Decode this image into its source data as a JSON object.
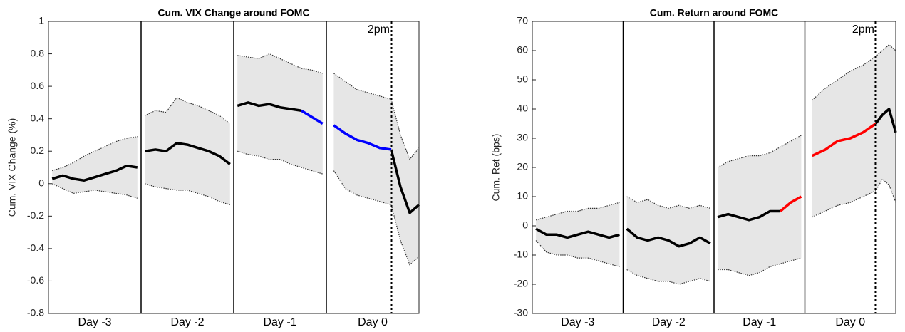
{
  "chart_data": [
    {
      "type": "line",
      "title": "Cum. VIX Change around FOMC",
      "ylabel": "Cum. VIX Change (%)",
      "categories": [
        "Day -3",
        "Day -2",
        "Day -1",
        "Day 0"
      ],
      "annotation": "2pm",
      "ylim": [
        -0.8,
        1
      ],
      "yticks": [
        -0.8,
        -0.6,
        -0.4,
        -0.2,
        0,
        0.2,
        0.4,
        0.6,
        0.8,
        1
      ],
      "series": [
        {
          "color": "#000000",
          "values": [
            [
              0.03,
              0.05,
              0.03,
              0.02,
              0.04,
              0.06,
              0.08,
              0.11,
              0.1
            ],
            [
              0.2,
              0.21,
              0.2,
              0.25,
              0.24,
              0.22,
              0.2,
              0.17,
              0.12
            ],
            [
              0.48,
              0.5,
              0.48,
              0.49,
              0.47,
              0.46,
              0.45,
              null,
              null
            ],
            [
              null,
              null,
              null,
              null,
              null,
              0.21,
              -0.02,
              -0.18,
              -0.13
            ]
          ]
        },
        {
          "color": "#0000ff",
          "values": [
            [
              null,
              null,
              null,
              null,
              null,
              null,
              null,
              null,
              null
            ],
            [
              null,
              null,
              null,
              null,
              null,
              null,
              null,
              null,
              null
            ],
            [
              null,
              null,
              null,
              null,
              null,
              null,
              0.45,
              0.41,
              0.37
            ],
            [
              0.36,
              0.31,
              0.27,
              0.25,
              0.22,
              0.21,
              null,
              null,
              null
            ]
          ]
        }
      ],
      "band": {
        "color": "#e6e6e6",
        "upper": [
          [
            0.08,
            0.1,
            0.13,
            0.17,
            0.2,
            0.23,
            0.26,
            0.28,
            0.29
          ],
          [
            0.42,
            0.45,
            0.44,
            0.53,
            0.5,
            0.48,
            0.45,
            0.42,
            0.37
          ],
          [
            0.79,
            0.78,
            0.77,
            0.8,
            0.77,
            0.74,
            0.71,
            0.7,
            0.68
          ],
          [
            0.68,
            0.63,
            0.58,
            0.56,
            0.54,
            0.52,
            0.3,
            0.15,
            0.22
          ]
        ],
        "lower": [
          [
            0.0,
            -0.03,
            -0.06,
            -0.05,
            -0.04,
            -0.05,
            -0.06,
            -0.07,
            -0.09
          ],
          [
            0.0,
            -0.02,
            -0.03,
            -0.04,
            -0.04,
            -0.06,
            -0.08,
            -0.11,
            -0.13
          ],
          [
            0.2,
            0.18,
            0.17,
            0.15,
            0.15,
            0.12,
            0.1,
            0.08,
            0.06
          ],
          [
            0.08,
            -0.03,
            -0.07,
            -0.09,
            -0.11,
            -0.13,
            -0.35,
            -0.5,
            -0.45
          ]
        ]
      }
    },
    {
      "type": "line",
      "title": "Cum. Return around FOMC",
      "ylabel": "Cum. Ret (bps)",
      "categories": [
        "Day -3",
        "Day -2",
        "Day -1",
        "Day 0"
      ],
      "annotation": "2pm",
      "ylim": [
        -30,
        70
      ],
      "yticks": [
        -30,
        -20,
        -10,
        0,
        10,
        20,
        30,
        40,
        50,
        60,
        70
      ],
      "series": [
        {
          "color": "#000000",
          "values": [
            [
              -1,
              -3,
              -3,
              -4,
              -3,
              -2,
              -3,
              -4,
              -3
            ],
            [
              -1,
              -4,
              -5,
              -4,
              -5,
              -7,
              -6,
              -4,
              -6
            ],
            [
              3,
              4,
              3,
              2,
              3,
              5,
              5,
              null,
              null
            ],
            [
              null,
              null,
              null,
              null,
              null,
              35,
              38,
              40,
              32
            ]
          ]
        },
        {
          "color": "#ff0000",
          "values": [
            [
              null,
              null,
              null,
              null,
              null,
              null,
              null,
              null,
              null
            ],
            [
              null,
              null,
              null,
              null,
              null,
              null,
              null,
              null,
              null
            ],
            [
              null,
              null,
              null,
              null,
              null,
              null,
              5,
              8,
              10
            ],
            [
              24,
              26,
              29,
              30,
              32,
              35,
              null,
              null,
              null
            ]
          ]
        }
      ],
      "band": {
        "color": "#e6e6e6",
        "upper": [
          [
            2,
            3,
            4,
            5,
            5,
            6,
            6,
            7,
            8
          ],
          [
            10,
            8,
            9,
            7,
            6,
            7,
            6,
            7,
            6
          ],
          [
            20,
            22,
            23,
            24,
            24,
            25,
            27,
            29,
            31
          ],
          [
            43,
            47,
            50,
            53,
            55,
            58,
            60,
            62,
            60
          ]
        ],
        "lower": [
          [
            -5,
            -9,
            -10,
            -10,
            -11,
            -11,
            -12,
            -13,
            -14
          ],
          [
            -15,
            -17,
            -18,
            -19,
            -19,
            -20,
            -19,
            -18,
            -19
          ],
          [
            -15,
            -15,
            -16,
            -17,
            -16,
            -14,
            -13,
            -12,
            -11
          ],
          [
            3,
            5,
            7,
            8,
            10,
            12,
            16,
            14,
            8
          ]
        ]
      }
    }
  ]
}
